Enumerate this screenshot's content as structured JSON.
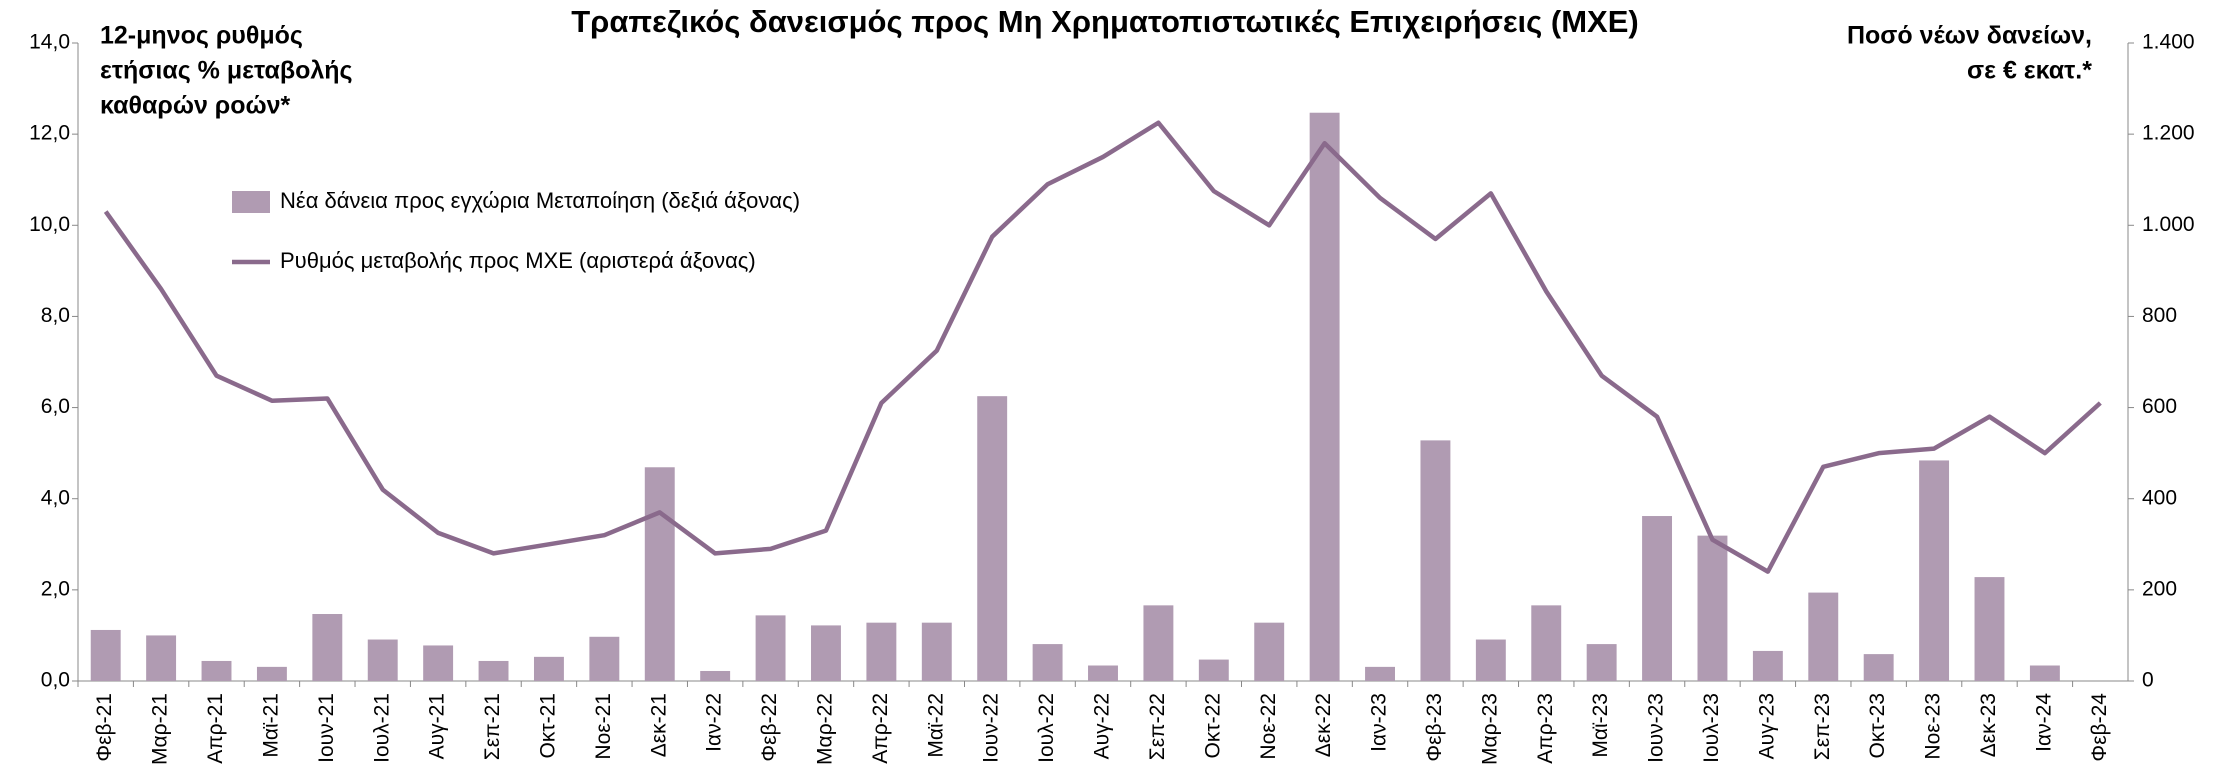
{
  "chart_data": {
    "type": "bar-line",
    "title": "Τραπεζικός δανεισμός προς Μη Χρηματοπιστωτικές Επιχειρήσεις (ΜΧΕ)",
    "y_label": [
      "12-μηνος ρυθμός",
      "ετήσιας % μεταβολής",
      "καθαρών ροών*"
    ],
    "y2_label": [
      "Ποσό νέων δανείων,",
      "σε € εκατ.*"
    ],
    "categories": [
      "Φεβ-21",
      "Μαρ-21",
      "Απρ-21",
      "Μαϊ-21",
      "Ιουν-21",
      "Ιουλ-21",
      "Αυγ-21",
      "Σεπ-21",
      "Οκτ-21",
      "Νοε-21",
      "Δεκ-21",
      "Ιαν-22",
      "Φεβ-22",
      "Μαρ-22",
      "Απρ-22",
      "Μαϊ-22",
      "Ιουν-22",
      "Ιουλ-22",
      "Αυγ-22",
      "Σεπ-22",
      "Οκτ-22",
      "Νοε-22",
      "Δεκ-22",
      "Ιαν-23",
      "Φεβ-23",
      "Μαρ-23",
      "Απρ-23",
      "Μαϊ-23",
      "Ιουν-23",
      "Ιουλ-23",
      "Αυγ-23",
      "Σεπ-23",
      "Οκτ-23",
      "Νοε-23",
      "Δεκ-23",
      "Ιαν-24",
      "Φεβ-24"
    ],
    "series": [
      {
        "name": "Νέα δάνεια προς εγχώρια Μεταποίηση (δεξιά άξονας)",
        "type": "bar",
        "axis": "y2",
        "color": "#b09bb2",
        "values": [
          112,
          100,
          44,
          31,
          147,
          91,
          78,
          44,
          53,
          97,
          469,
          22,
          144,
          122,
          128,
          128,
          625,
          81,
          34,
          166,
          47,
          128,
          1247,
          31,
          528,
          91,
          166,
          81,
          362,
          319,
          66,
          194,
          59,
          484,
          228,
          34,
          null
        ]
      },
      {
        "name": "Ρυθμός μεταβολής προς ΜΧΕ (αριστερά άξονας)",
        "type": "line",
        "axis": "y",
        "color": "#8a6a8c",
        "values": [
          10.3,
          8.6,
          6.7,
          6.15,
          6.2,
          4.2,
          3.25,
          2.8,
          3.0,
          3.2,
          3.7,
          2.8,
          2.9,
          3.3,
          6.1,
          7.25,
          9.75,
          10.9,
          11.5,
          12.25,
          10.75,
          10.0,
          11.8,
          10.6,
          9.7,
          10.7,
          8.55,
          6.7,
          5.8,
          3.1,
          2.4,
          4.7,
          5.0,
          5.1,
          5.8,
          5.0,
          6.1
        ]
      }
    ],
    "ylim": [
      0,
      14
    ],
    "yticks": [
      {
        "value": 0,
        "label": "0,0"
      },
      {
        "value": 2,
        "label": "2,0"
      },
      {
        "value": 4,
        "label": "4,0"
      },
      {
        "value": 6,
        "label": "6,0"
      },
      {
        "value": 8,
        "label": "8,0"
      },
      {
        "value": 10,
        "label": "10,0"
      },
      {
        "value": 12,
        "label": "12,0"
      },
      {
        "value": 14,
        "label": "14,0"
      }
    ],
    "y2lim": [
      0,
      1400
    ],
    "y2ticks": [
      0,
      200,
      400,
      600,
      800,
      {
        "value": 1000,
        "label": "1.000"
      },
      {
        "value": 1200,
        "label": "1.200"
      },
      {
        "value": 1400,
        "label": "1.400"
      }
    ]
  }
}
